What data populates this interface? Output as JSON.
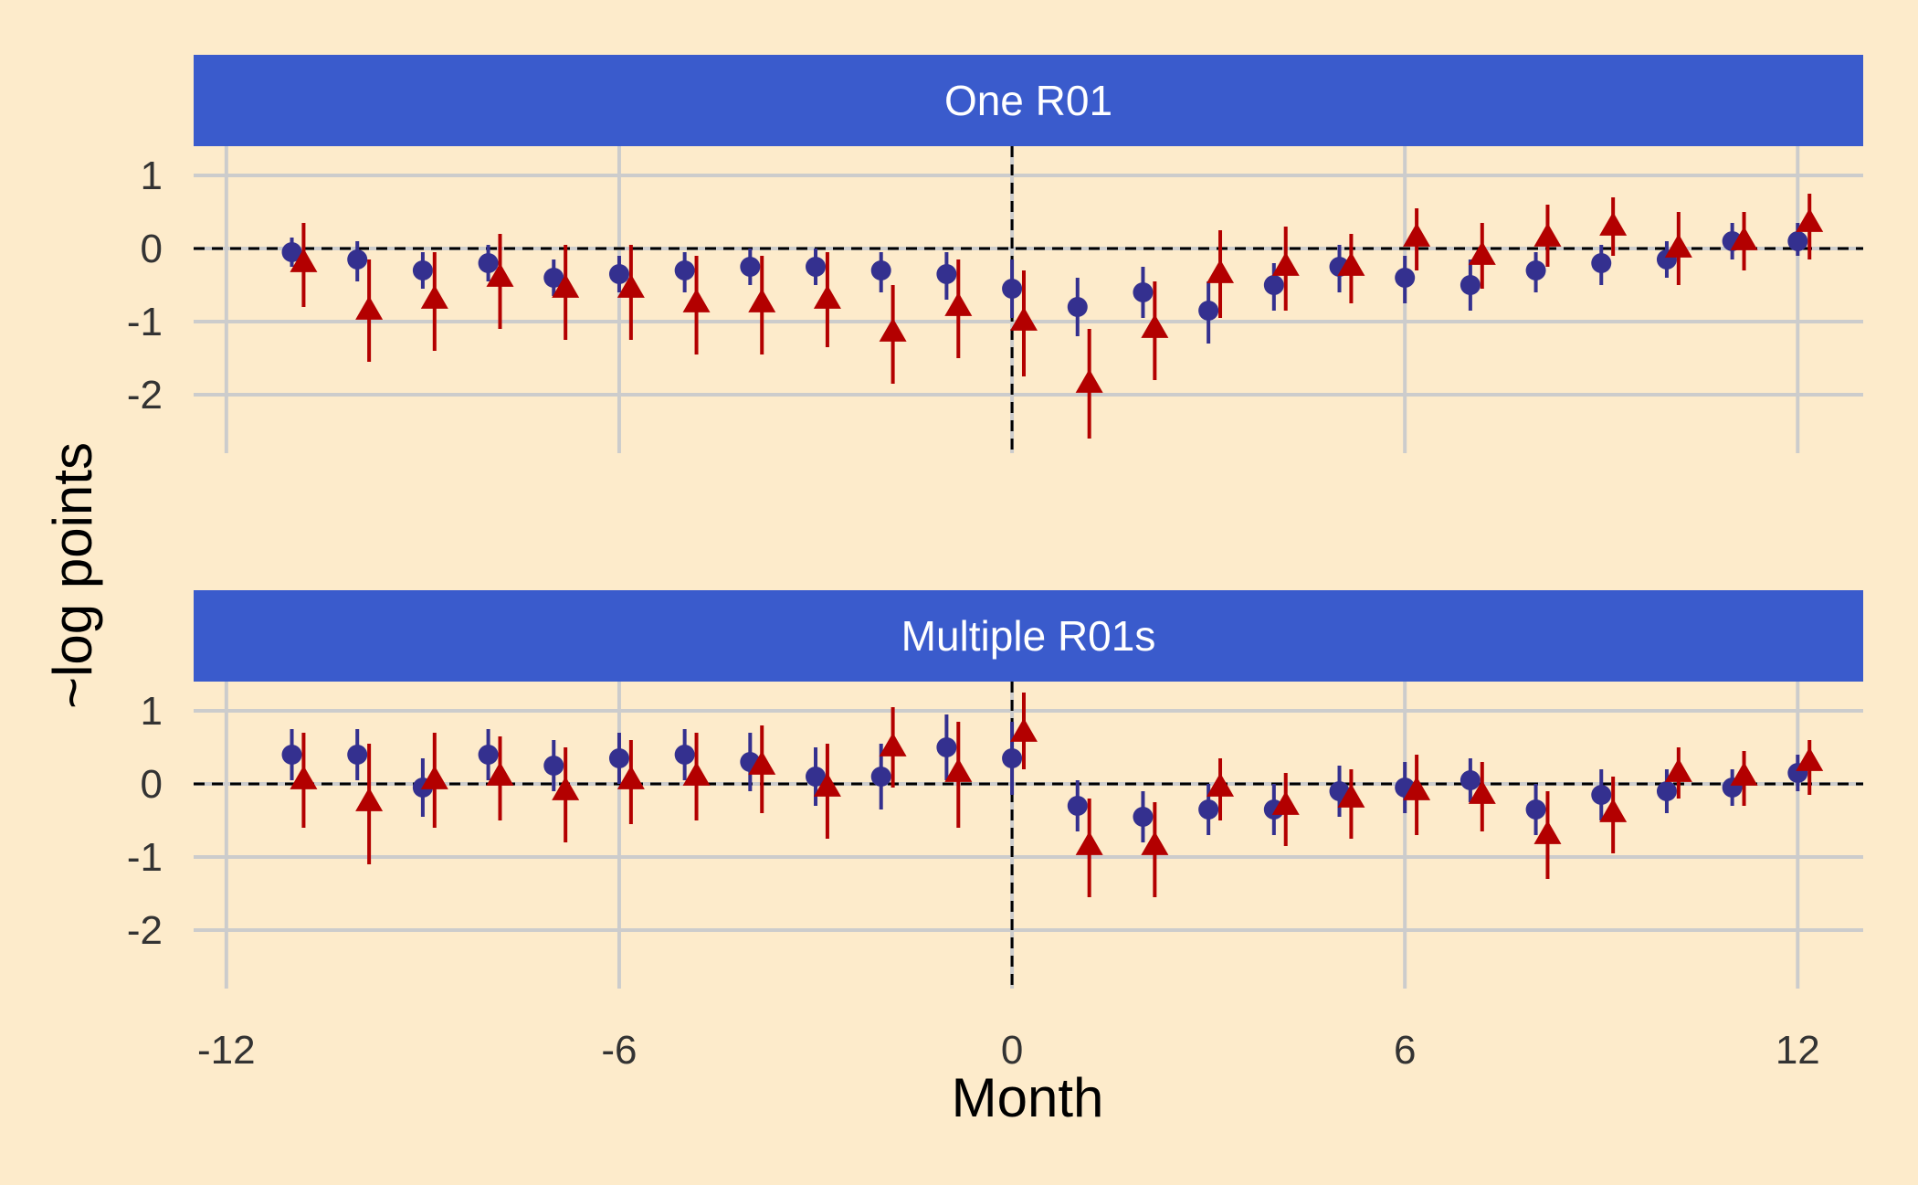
{
  "chart_data": {
    "type": "scatter",
    "xlabel": "Month",
    "ylabel": "~log points",
    "xlim": [
      -12.5,
      13.0
    ],
    "ylim": [
      -2.8,
      1.4
    ],
    "x_ticks": [
      -12,
      -6,
      0,
      6,
      12
    ],
    "y_ticks": [
      1,
      0,
      -1,
      -2
    ],
    "grid": true,
    "reference_lines": {
      "x": 0,
      "y": 0,
      "style": "dashed"
    },
    "colors": {
      "background": "#FDEBCB",
      "strip": "#3A5BCC",
      "grid": "#CCCCCC",
      "circle_series": "#34308F",
      "triangle_series": "#B30000",
      "reference": "#000000"
    },
    "panels": [
      {
        "title": "One R01",
        "series": [
          {
            "marker": "circle",
            "color": "#34308F",
            "points": [
              {
                "x": -11,
                "y": -0.05,
                "lo": -0.25,
                "hi": 0.15
              },
              {
                "x": -10,
                "y": -0.15,
                "lo": -0.45,
                "hi": 0.1
              },
              {
                "x": -9,
                "y": -0.3,
                "lo": -0.55,
                "hi": -0.05
              },
              {
                "x": -8,
                "y": -0.2,
                "lo": -0.45,
                "hi": 0.05
              },
              {
                "x": -7,
                "y": -0.4,
                "lo": -0.65,
                "hi": -0.15
              },
              {
                "x": -6,
                "y": -0.35,
                "lo": -0.6,
                "hi": -0.1
              },
              {
                "x": -5,
                "y": -0.3,
                "lo": -0.6,
                "hi": -0.05
              },
              {
                "x": -4,
                "y": -0.25,
                "lo": -0.5,
                "hi": 0.0
              },
              {
                "x": -3,
                "y": -0.25,
                "lo": -0.5,
                "hi": 0.0
              },
              {
                "x": -2,
                "y": -0.3,
                "lo": -0.6,
                "hi": -0.05
              },
              {
                "x": -1,
                "y": -0.35,
                "lo": -0.7,
                "hi": -0.05
              },
              {
                "x": 0,
                "y": -0.55,
                "lo": -0.95,
                "hi": -0.15
              },
              {
                "x": 1,
                "y": -0.8,
                "lo": -1.2,
                "hi": -0.4
              },
              {
                "x": 2,
                "y": -0.6,
                "lo": -0.95,
                "hi": -0.25
              },
              {
                "x": 3,
                "y": -0.85,
                "lo": -1.3,
                "hi": -0.45
              },
              {
                "x": 4,
                "y": -0.5,
                "lo": -0.85,
                "hi": -0.2
              },
              {
                "x": 5,
                "y": -0.25,
                "lo": -0.6,
                "hi": 0.05
              },
              {
                "x": 6,
                "y": -0.4,
                "lo": -0.75,
                "hi": -0.1
              },
              {
                "x": 7,
                "y": -0.5,
                "lo": -0.85,
                "hi": -0.15
              },
              {
                "x": 8,
                "y": -0.3,
                "lo": -0.6,
                "hi": -0.05
              },
              {
                "x": 9,
                "y": -0.2,
                "lo": -0.5,
                "hi": 0.05
              },
              {
                "x": 10,
                "y": -0.15,
                "lo": -0.4,
                "hi": 0.1
              },
              {
                "x": 11,
                "y": 0.1,
                "lo": -0.15,
                "hi": 0.35
              },
              {
                "x": 12,
                "y": 0.1,
                "lo": -0.1,
                "hi": 0.35
              }
            ]
          },
          {
            "marker": "triangle",
            "color": "#B30000",
            "points": [
              {
                "x": -11,
                "y": -0.2,
                "lo": -0.8,
                "hi": 0.35
              },
              {
                "x": -10,
                "y": -0.85,
                "lo": -1.55,
                "hi": -0.15
              },
              {
                "x": -9,
                "y": -0.7,
                "lo": -1.4,
                "hi": -0.05
              },
              {
                "x": -8,
                "y": -0.4,
                "lo": -1.1,
                "hi": 0.2
              },
              {
                "x": -7,
                "y": -0.55,
                "lo": -1.25,
                "hi": 0.05
              },
              {
                "x": -6,
                "y": -0.55,
                "lo": -1.25,
                "hi": 0.05
              },
              {
                "x": -5,
                "y": -0.75,
                "lo": -1.45,
                "hi": -0.1
              },
              {
                "x": -4,
                "y": -0.75,
                "lo": -1.45,
                "hi": -0.1
              },
              {
                "x": -3,
                "y": -0.7,
                "lo": -1.35,
                "hi": -0.05
              },
              {
                "x": -2,
                "y": -1.15,
                "lo": -1.85,
                "hi": -0.5
              },
              {
                "x": -1,
                "y": -0.8,
                "lo": -1.5,
                "hi": -0.15
              },
              {
                "x": 0,
                "y": -1.0,
                "lo": -1.75,
                "hi": -0.3
              },
              {
                "x": 1,
                "y": -1.85,
                "lo": -2.6,
                "hi": -1.1
              },
              {
                "x": 2,
                "y": -1.1,
                "lo": -1.8,
                "hi": -0.45
              },
              {
                "x": 3,
                "y": -0.35,
                "lo": -0.95,
                "hi": 0.25
              },
              {
                "x": 4,
                "y": -0.25,
                "lo": -0.85,
                "hi": 0.3
              },
              {
                "x": 5,
                "y": -0.25,
                "lo": -0.75,
                "hi": 0.2
              },
              {
                "x": 6,
                "y": 0.15,
                "lo": -0.3,
                "hi": 0.55
              },
              {
                "x": 7,
                "y": -0.1,
                "lo": -0.55,
                "hi": 0.35
              },
              {
                "x": 8,
                "y": 0.15,
                "lo": -0.25,
                "hi": 0.6
              },
              {
                "x": 9,
                "y": 0.3,
                "lo": -0.1,
                "hi": 0.7
              },
              {
                "x": 10,
                "y": 0.0,
                "lo": -0.5,
                "hi": 0.5
              },
              {
                "x": 11,
                "y": 0.1,
                "lo": -0.3,
                "hi": 0.5
              },
              {
                "x": 12,
                "y": 0.35,
                "lo": -0.15,
                "hi": 0.75
              }
            ]
          }
        ]
      },
      {
        "title": "Multiple R01s",
        "series": [
          {
            "marker": "circle",
            "color": "#34308F",
            "points": [
              {
                "x": -11,
                "y": 0.4,
                "lo": 0.05,
                "hi": 0.75
              },
              {
                "x": -10,
                "y": 0.4,
                "lo": 0.05,
                "hi": 0.75
              },
              {
                "x": -9,
                "y": -0.05,
                "lo": -0.45,
                "hi": 0.35
              },
              {
                "x": -8,
                "y": 0.4,
                "lo": 0.05,
                "hi": 0.75
              },
              {
                "x": -7,
                "y": 0.25,
                "lo": -0.1,
                "hi": 0.6
              },
              {
                "x": -6,
                "y": 0.35,
                "lo": 0.0,
                "hi": 0.7
              },
              {
                "x": -5,
                "y": 0.4,
                "lo": 0.05,
                "hi": 0.75
              },
              {
                "x": -4,
                "y": 0.3,
                "lo": -0.1,
                "hi": 0.7
              },
              {
                "x": -3,
                "y": 0.1,
                "lo": -0.3,
                "hi": 0.5
              },
              {
                "x": -2,
                "y": 0.1,
                "lo": -0.35,
                "hi": 0.55
              },
              {
                "x": -1,
                "y": 0.5,
                "lo": 0.05,
                "hi": 0.95
              },
              {
                "x": 0,
                "y": 0.35,
                "lo": -0.15,
                "hi": 0.85
              },
              {
                "x": 1,
                "y": -0.3,
                "lo": -0.65,
                "hi": 0.05
              },
              {
                "x": 2,
                "y": -0.45,
                "lo": -0.8,
                "hi": -0.1
              },
              {
                "x": 3,
                "y": -0.35,
                "lo": -0.7,
                "hi": 0.0
              },
              {
                "x": 4,
                "y": -0.35,
                "lo": -0.7,
                "hi": 0.0
              },
              {
                "x": 5,
                "y": -0.1,
                "lo": -0.45,
                "hi": 0.25
              },
              {
                "x": 6,
                "y": -0.05,
                "lo": -0.4,
                "hi": 0.3
              },
              {
                "x": 7,
                "y": 0.05,
                "lo": -0.25,
                "hi": 0.35
              },
              {
                "x": 8,
                "y": -0.35,
                "lo": -0.7,
                "hi": 0.0
              },
              {
                "x": 9,
                "y": -0.15,
                "lo": -0.5,
                "hi": 0.2
              },
              {
                "x": 10,
                "y": -0.1,
                "lo": -0.4,
                "hi": 0.2
              },
              {
                "x": 11,
                "y": -0.05,
                "lo": -0.3,
                "hi": 0.2
              },
              {
                "x": 12,
                "y": 0.15,
                "lo": -0.1,
                "hi": 0.4
              }
            ]
          },
          {
            "marker": "triangle",
            "color": "#B30000",
            "points": [
              {
                "x": -11,
                "y": 0.05,
                "lo": -0.6,
                "hi": 0.7
              },
              {
                "x": -10,
                "y": -0.25,
                "lo": -1.1,
                "hi": 0.55
              },
              {
                "x": -9,
                "y": 0.05,
                "lo": -0.6,
                "hi": 0.7
              },
              {
                "x": -8,
                "y": 0.1,
                "lo": -0.5,
                "hi": 0.65
              },
              {
                "x": -7,
                "y": -0.1,
                "lo": -0.8,
                "hi": 0.5
              },
              {
                "x": -6,
                "y": 0.05,
                "lo": -0.55,
                "hi": 0.6
              },
              {
                "x": -5,
                "y": 0.1,
                "lo": -0.5,
                "hi": 0.7
              },
              {
                "x": -4,
                "y": 0.25,
                "lo": -0.4,
                "hi": 0.8
              },
              {
                "x": -3,
                "y": -0.05,
                "lo": -0.75,
                "hi": 0.55
              },
              {
                "x": -2,
                "y": 0.5,
                "lo": -0.05,
                "hi": 1.05
              },
              {
                "x": -1,
                "y": 0.15,
                "lo": -0.6,
                "hi": 0.85
              },
              {
                "x": 0,
                "y": 0.7,
                "lo": 0.2,
                "hi": 1.25
              },
              {
                "x": 1,
                "y": -0.85,
                "lo": -1.55,
                "hi": -0.2
              },
              {
                "x": 2,
                "y": -0.85,
                "lo": -1.55,
                "hi": -0.25
              },
              {
                "x": 3,
                "y": -0.05,
                "lo": -0.5,
                "hi": 0.35
              },
              {
                "x": 4,
                "y": -0.3,
                "lo": -0.85,
                "hi": 0.15
              },
              {
                "x": 5,
                "y": -0.2,
                "lo": -0.75,
                "hi": 0.2
              },
              {
                "x": 6,
                "y": -0.1,
                "lo": -0.7,
                "hi": 0.4
              },
              {
                "x": 7,
                "y": -0.15,
                "lo": -0.65,
                "hi": 0.3
              },
              {
                "x": 8,
                "y": -0.7,
                "lo": -1.3,
                "hi": -0.1
              },
              {
                "x": 9,
                "y": -0.4,
                "lo": -0.95,
                "hi": 0.1
              },
              {
                "x": 10,
                "y": 0.15,
                "lo": -0.2,
                "hi": 0.5
              },
              {
                "x": 11,
                "y": 0.1,
                "lo": -0.3,
                "hi": 0.45
              },
              {
                "x": 12,
                "y": 0.3,
                "lo": -0.15,
                "hi": 0.6
              }
            ]
          }
        ]
      }
    ]
  }
}
